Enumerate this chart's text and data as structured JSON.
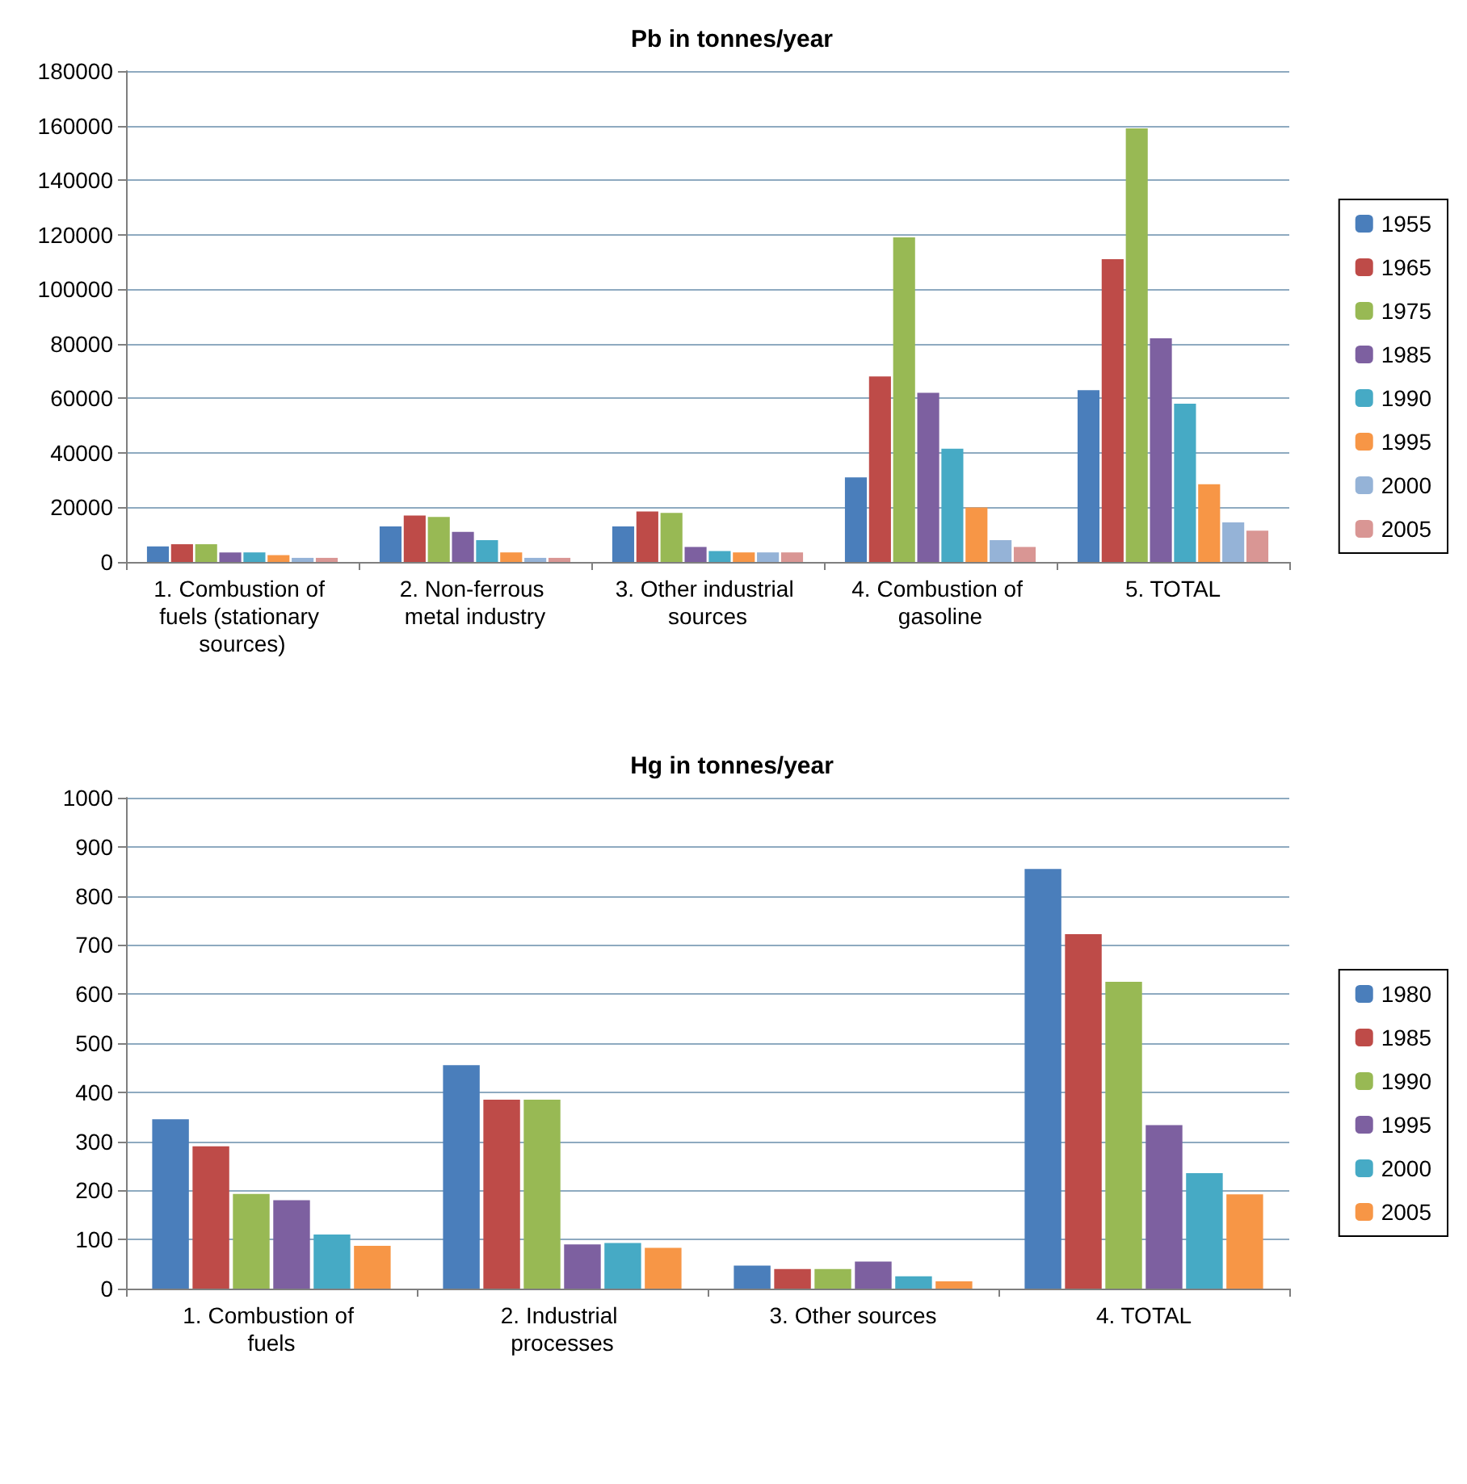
{
  "chart_data": [
    {
      "type": "bar",
      "title": "Pb in tonnes/year",
      "categories": [
        "1. Combustion of fuels (stationary sources)",
        "2. Non-ferrous metal industry",
        "3. Other industrial sources",
        "4. Combustion of gasoline",
        "5. TOTAL"
      ],
      "series": [
        {
          "name": "1955",
          "color": "#4a7ebb",
          "values": [
            5700,
            13000,
            13000,
            31000,
            63000
          ]
        },
        {
          "name": "1965",
          "color": "#be4b48",
          "values": [
            6500,
            17000,
            18500,
            68000,
            111000
          ]
        },
        {
          "name": "1975",
          "color": "#98b954",
          "values": [
            6500,
            16500,
            18000,
            119000,
            159000
          ]
        },
        {
          "name": "1985",
          "color": "#7d60a0",
          "values": [
            3500,
            11000,
            5500,
            62000,
            82000
          ]
        },
        {
          "name": "1990",
          "color": "#46aac5",
          "values": [
            3500,
            8000,
            4000,
            41500,
            58000
          ]
        },
        {
          "name": "1995",
          "color": "#f79646",
          "values": [
            2500,
            3500,
            3500,
            20000,
            28500
          ]
        },
        {
          "name": "2000",
          "color": "#95b3d7",
          "values": [
            1500,
            1500,
            3500,
            8000,
            14500
          ]
        },
        {
          "name": "2005",
          "color": "#d99694",
          "values": [
            1500,
            1500,
            3500,
            5500,
            11500
          ]
        }
      ],
      "ylim": [
        0,
        180000
      ],
      "yticks": [
        0,
        20000,
        40000,
        60000,
        80000,
        100000,
        120000,
        140000,
        160000,
        180000
      ],
      "grid": "y",
      "legend": "right"
    },
    {
      "type": "bar",
      "title": "Hg in tonnes/year",
      "categories": [
        "1. Combustion of fuels",
        "2. Industrial processes",
        "3. Other sources",
        "4. TOTAL"
      ],
      "series": [
        {
          "name": "1980",
          "color": "#4a7ebb",
          "values": [
            345,
            455,
            47,
            855
          ]
        },
        {
          "name": "1985",
          "color": "#be4b48",
          "values": [
            290,
            385,
            40,
            722
          ]
        },
        {
          "name": "1990",
          "color": "#98b954",
          "values": [
            193,
            385,
            40,
            625
          ]
        },
        {
          "name": "1995",
          "color": "#7d60a0",
          "values": [
            180,
            90,
            55,
            333
          ]
        },
        {
          "name": "2000",
          "color": "#46aac5",
          "values": [
            110,
            93,
            25,
            235
          ]
        },
        {
          "name": "2005",
          "color": "#f79646",
          "values": [
            87,
            83,
            15,
            192
          ]
        }
      ],
      "ylim": [
        0,
        1000
      ],
      "yticks": [
        0,
        100,
        200,
        300,
        400,
        500,
        600,
        700,
        800,
        900,
        1000
      ],
      "grid": "y",
      "legend": "right"
    }
  ]
}
